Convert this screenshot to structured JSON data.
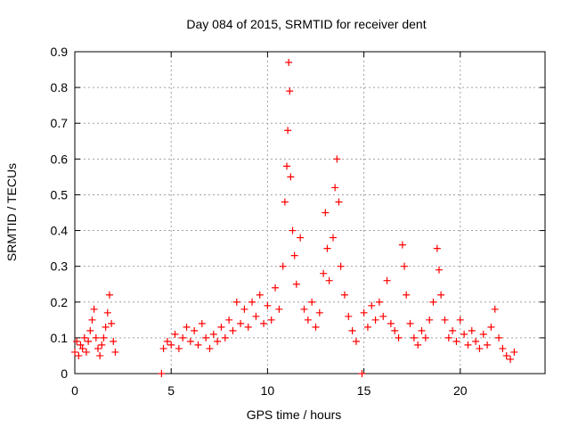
{
  "chart_data": {
    "type": "scatter",
    "title": "Day 084 of 2015, SRMTID for receiver dent",
    "xlabel": "GPS time / hours",
    "ylabel": "SRMTID / TECUs",
    "xlim": [
      0,
      24.4
    ],
    "ylim": [
      0,
      0.9
    ],
    "xticks": [
      "0",
      "5",
      "10",
      "15",
      "20"
    ],
    "yticks": [
      "0",
      "0.1",
      "0.2",
      "0.3",
      "0.4",
      "0.5",
      "0.6",
      "0.7",
      "0.8",
      "0.9"
    ],
    "grid": true,
    "marker": "plus",
    "color": "#ff0000",
    "series": [
      {
        "name": "SRMTID",
        "points": [
          [
            0.0,
            0.06
          ],
          [
            0.1,
            0.09
          ],
          [
            0.2,
            0.05
          ],
          [
            0.3,
            0.08
          ],
          [
            0.4,
            0.07
          ],
          [
            0.5,
            0.1
          ],
          [
            0.6,
            0.06
          ],
          [
            0.7,
            0.09
          ],
          [
            0.8,
            0.12
          ],
          [
            0.9,
            0.15
          ],
          [
            1.0,
            0.18
          ],
          [
            1.1,
            0.1
          ],
          [
            1.2,
            0.07
          ],
          [
            1.3,
            0.05
          ],
          [
            1.4,
            0.08
          ],
          [
            1.5,
            0.1
          ],
          [
            1.6,
            0.13
          ],
          [
            1.7,
            0.17
          ],
          [
            1.8,
            0.22
          ],
          [
            1.9,
            0.14
          ],
          [
            2.0,
            0.09
          ],
          [
            2.1,
            0.06
          ],
          [
            4.5,
            0.0
          ],
          [
            4.6,
            0.07
          ],
          [
            4.8,
            0.09
          ],
          [
            5.0,
            0.08
          ],
          [
            5.2,
            0.11
          ],
          [
            5.4,
            0.07
          ],
          [
            5.6,
            0.1
          ],
          [
            5.8,
            0.13
          ],
          [
            6.0,
            0.09
          ],
          [
            6.2,
            0.12
          ],
          [
            6.4,
            0.08
          ],
          [
            6.6,
            0.14
          ],
          [
            6.8,
            0.1
          ],
          [
            7.0,
            0.07
          ],
          [
            7.2,
            0.11
          ],
          [
            7.4,
            0.09
          ],
          [
            7.6,
            0.13
          ],
          [
            7.8,
            0.1
          ],
          [
            8.0,
            0.15
          ],
          [
            8.2,
            0.12
          ],
          [
            8.4,
            0.2
          ],
          [
            8.6,
            0.14
          ],
          [
            8.8,
            0.18
          ],
          [
            9.0,
            0.13
          ],
          [
            9.2,
            0.2
          ],
          [
            9.4,
            0.16
          ],
          [
            9.6,
            0.22
          ],
          [
            9.8,
            0.14
          ],
          [
            10.0,
            0.19
          ],
          [
            10.2,
            0.15
          ],
          [
            10.4,
            0.24
          ],
          [
            10.6,
            0.18
          ],
          [
            10.8,
            0.3
          ],
          [
            10.9,
            0.48
          ],
          [
            11.0,
            0.58
          ],
          [
            11.05,
            0.68
          ],
          [
            11.1,
            0.87
          ],
          [
            11.15,
            0.79
          ],
          [
            11.2,
            0.55
          ],
          [
            11.3,
            0.4
          ],
          [
            11.4,
            0.33
          ],
          [
            11.5,
            0.25
          ],
          [
            11.7,
            0.38
          ],
          [
            11.9,
            0.18
          ],
          [
            12.1,
            0.15
          ],
          [
            12.3,
            0.2
          ],
          [
            12.5,
            0.13
          ],
          [
            12.7,
            0.17
          ],
          [
            12.9,
            0.28
          ],
          [
            13.0,
            0.45
          ],
          [
            13.1,
            0.35
          ],
          [
            13.2,
            0.26
          ],
          [
            13.4,
            0.38
          ],
          [
            13.5,
            0.52
          ],
          [
            13.6,
            0.6
          ],
          [
            13.7,
            0.48
          ],
          [
            13.8,
            0.3
          ],
          [
            14.0,
            0.22
          ],
          [
            14.2,
            0.16
          ],
          [
            14.4,
            0.12
          ],
          [
            14.6,
            0.09
          ],
          [
            14.9,
            0.0
          ],
          [
            15.0,
            0.17
          ],
          [
            15.2,
            0.13
          ],
          [
            15.4,
            0.19
          ],
          [
            15.6,
            0.15
          ],
          [
            15.8,
            0.2
          ],
          [
            16.0,
            0.16
          ],
          [
            16.2,
            0.26
          ],
          [
            16.4,
            0.14
          ],
          [
            16.6,
            0.12
          ],
          [
            16.8,
            0.1
          ],
          [
            17.0,
            0.36
          ],
          [
            17.1,
            0.3
          ],
          [
            17.2,
            0.22
          ],
          [
            17.4,
            0.14
          ],
          [
            17.6,
            0.1
          ],
          [
            17.8,
            0.08
          ],
          [
            18.0,
            0.12
          ],
          [
            18.2,
            0.1
          ],
          [
            18.4,
            0.15
          ],
          [
            18.6,
            0.2
          ],
          [
            18.8,
            0.35
          ],
          [
            18.9,
            0.29
          ],
          [
            19.0,
            0.22
          ],
          [
            19.2,
            0.15
          ],
          [
            19.4,
            0.1
          ],
          [
            19.6,
            0.12
          ],
          [
            19.8,
            0.09
          ],
          [
            20.0,
            0.15
          ],
          [
            20.2,
            0.11
          ],
          [
            20.4,
            0.08
          ],
          [
            20.6,
            0.12
          ],
          [
            20.8,
            0.09
          ],
          [
            21.0,
            0.07
          ],
          [
            21.2,
            0.11
          ],
          [
            21.4,
            0.08
          ],
          [
            21.6,
            0.13
          ],
          [
            21.8,
            0.18
          ],
          [
            22.0,
            0.1
          ],
          [
            22.2,
            0.07
          ],
          [
            22.4,
            0.05
          ],
          [
            22.6,
            0.04
          ],
          [
            22.8,
            0.06
          ]
        ]
      }
    ]
  }
}
